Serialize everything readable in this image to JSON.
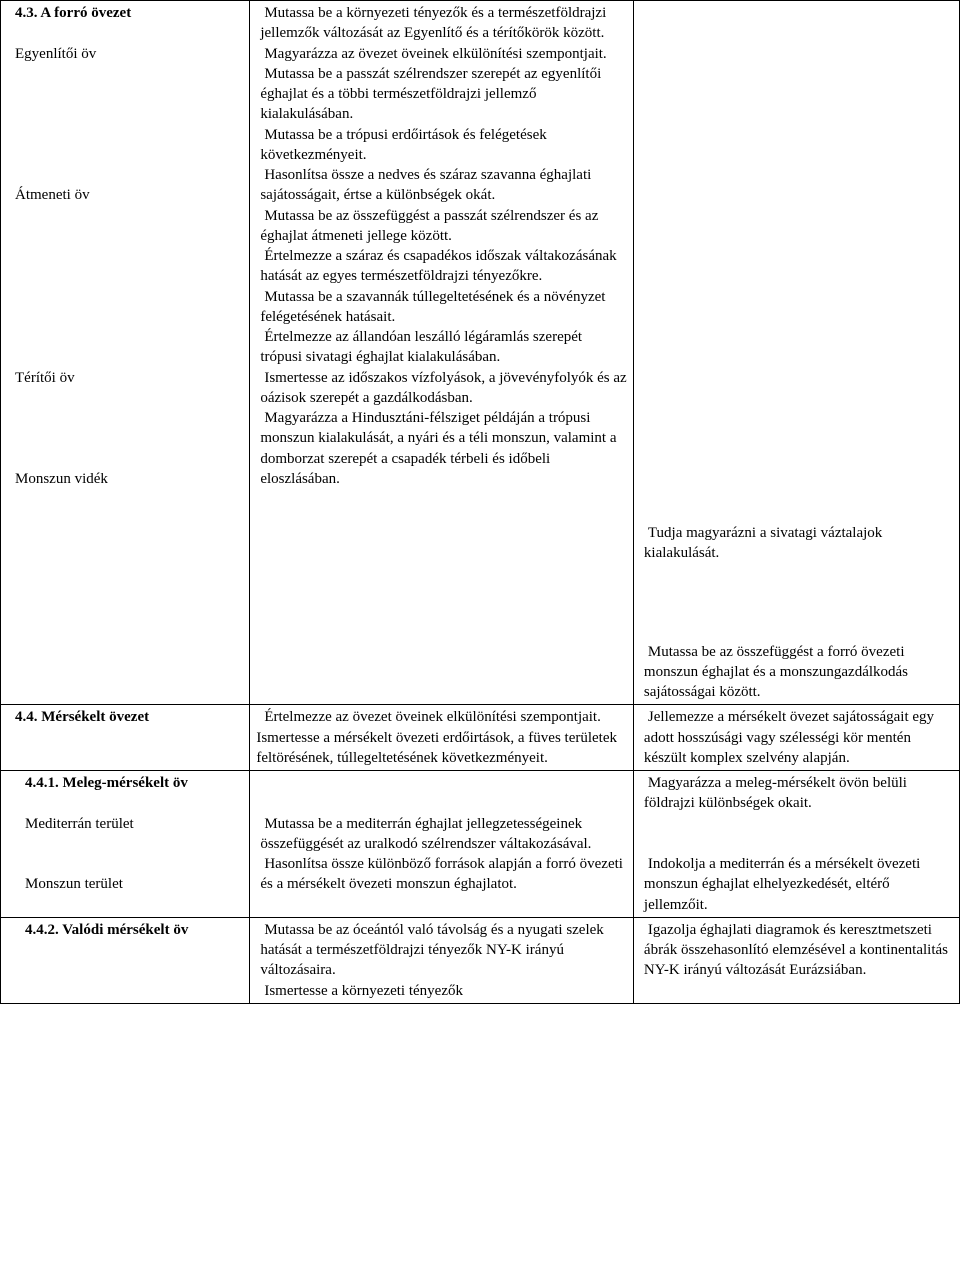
{
  "rows": [
    {
      "col1": [
        {
          "text": "4.3. A forró övezet",
          "bold": true
        },
        {
          "text": "",
          "spacer": true
        },
        {
          "text": "Egyenlítői öv"
        },
        {
          "text": "",
          "spacer": true
        },
        {
          "text": "",
          "spacer": true
        },
        {
          "text": "",
          "spacer": true
        },
        {
          "text": "",
          "spacer": true
        },
        {
          "text": "",
          "spacer": true
        },
        {
          "text": "",
          "spacer": true
        },
        {
          "text": "Átmeneti öv"
        },
        {
          "text": "",
          "spacer": true
        },
        {
          "text": "",
          "spacer": true
        },
        {
          "text": "",
          "spacer": true
        },
        {
          "text": "",
          "spacer": true
        },
        {
          "text": "",
          "spacer": true
        },
        {
          "text": "",
          "spacer": true
        },
        {
          "text": "",
          "spacer": true
        },
        {
          "text": "",
          "spacer": true
        },
        {
          "text": "Térítői öv"
        },
        {
          "text": "",
          "spacer": true
        },
        {
          "text": "",
          "spacer": true
        },
        {
          "text": "",
          "spacer": true
        },
        {
          "text": "",
          "spacer": true
        },
        {
          "text": "Monszun vidék"
        }
      ],
      "col2": [
        {
          "text": " Mutassa be a környezeti tényezők és a természetföldrajzi jellemzők változását az Egyenlítő és a térítőkörök között."
        },
        {
          "text": " Magyarázza az övezet öveinek elkülönítési szempontjait."
        },
        {
          "text": " Mutassa be a passzát szélrendszer szerepét az egyenlítői éghajlat és a többi természetföldrajzi jellemző kialakulásában."
        },
        {
          "text": " Mutassa be a trópusi erdőirtások és felégetések következményeit."
        },
        {
          "text": " Hasonlítsa össze a nedves és száraz szavanna éghajlati sajátosságait, értse a különbségek okát."
        },
        {
          "text": " Mutassa be az összefüggést a passzát szélrendszer és az éghajlat átmeneti jellege között."
        },
        {
          "text": " Értelmezze a száraz és csapadékos időszak váltakozásának hatását az egyes természetföldrajzi tényezőkre."
        },
        {
          "text": " Mutassa be a szavannák túllegeltetésének és a növényzet felégetésének hatásait."
        },
        {
          "text": " Értelmezze az állandóan leszálló légáramlás szerepét trópusi sivatagi éghajlat kialakulásában."
        },
        {
          "text": " Ismertesse az időszakos vízfolyások, a jövevényfolyók és az oázisok szerepét a gazdálkodásban."
        },
        {
          "text": " Magyarázza a Hindusztáni-félsziget példáján a trópusi monszun kialakulását, a nyári és a téli monszun, valamint a domborzat szerepét a csapadék térbeli és időbeli eloszlásában."
        }
      ],
      "col3": [
        {
          "text": "",
          "spacer_big": true
        },
        {
          "text": " Tudja magyarázni a sivatagi váztalajok kialakulását."
        },
        {
          "text": "",
          "spacer_med": true
        },
        {
          "text": " Mutassa be az összefüggést a forró övezeti monszun éghajlat és a monszungazdálkodás sajátosságai között."
        }
      ]
    },
    {
      "col1": [
        {
          "text": "4.4. Mérsékelt övezet",
          "bold": true
        }
      ],
      "col2": [
        {
          "text": " Értelmezze az övezet öveinek elkülönítési szempontjait."
        },
        {
          "text": "Ismertesse a mérsékelt övezeti erdőirtások, a füves területek feltörésének, túllegeltetésének következményeit.",
          "noindent": true
        }
      ],
      "col3": [
        {
          "text": " Jellemezze a mérsékelt övezet sajátosságait egy adott hosszúsági vagy szélességi kör mentén készült komplex szelvény alapján."
        }
      ]
    },
    {
      "col1": [
        {
          "text": "4.4.1. Meleg-mérsékelt öv",
          "bold": true,
          "indent": true
        },
        {
          "text": "",
          "spacer": true
        },
        {
          "text": "Mediterrán terület",
          "indent": true
        },
        {
          "text": "",
          "spacer": true
        },
        {
          "text": "",
          "spacer": true
        },
        {
          "text": "Monszun terület",
          "indent": true
        }
      ],
      "col2": [
        {
          "text": "",
          "spacer": true
        },
        {
          "text": "",
          "spacer": true
        },
        {
          "text": " Mutassa be a mediterrán éghajlat jellegzetességeinek összefüggését az uralkodó szélrendszer váltakozásával."
        },
        {
          "text": " Hasonlítsa össze különböző források alapján a forró övezeti és a mérsékelt övezeti monszun éghajlatot."
        }
      ],
      "col3": [
        {
          "text": " Magyarázza a meleg-mérsékelt övön belüli földrajzi különbségek okait."
        },
        {
          "text": "",
          "spacer": true
        },
        {
          "text": "",
          "spacer": true
        },
        {
          "text": " Indokolja a mediterrán és a mérsékelt övezeti monszun éghajlat elhelyezkedését, eltérő jellemzőit."
        }
      ]
    },
    {
      "col1": [
        {
          "text": "4.4.2. Valódi mérsékelt öv",
          "bold": true,
          "indent": true
        }
      ],
      "col2": [
        {
          "text": " Mutassa be az óceántól való távolság és a nyugati szelek hatását a természetföldrajzi tényezők NY-K irányú változásaira."
        },
        {
          "text": " Ismertesse a környezeti tényezők"
        }
      ],
      "col3": [
        {
          "text": " Igazolja éghajlati diagramok és keresztmetszeti ábrák összehasonlító elemzésével a kontinentalitás NY-K irányú változását Eurázsiában."
        }
      ]
    }
  ]
}
